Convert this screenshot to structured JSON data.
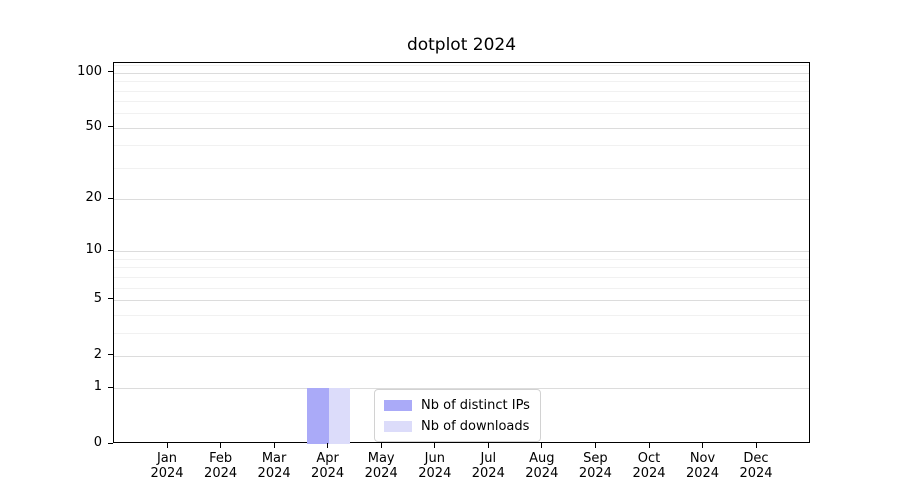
{
  "chart_data": {
    "type": "bar",
    "title": "dotplot 2024",
    "categories": [
      "Jan",
      "Feb",
      "Mar",
      "Apr",
      "May",
      "Jun",
      "Jul",
      "Aug",
      "Sep",
      "Oct",
      "Nov",
      "Dec"
    ],
    "category_year": "2024",
    "series": [
      {
        "name": "Nb of distinct IPs",
        "color": "#aaaaf8",
        "values": [
          0,
          0,
          0,
          1,
          0,
          0,
          0,
          0,
          0,
          0,
          0,
          0
        ]
      },
      {
        "name": "Nb of downloads",
        "color": "#dcdcfa",
        "values": [
          0,
          0,
          0,
          1,
          0,
          0,
          0,
          0,
          0,
          0,
          0,
          0
        ]
      }
    ],
    "y_scale": "log1p",
    "ylim": [
      0,
      113
    ],
    "y_ticks": [
      0,
      1,
      2,
      5,
      10,
      20,
      50,
      100
    ],
    "y_minor_gridlines": [
      3,
      4,
      6,
      7,
      8,
      9,
      30,
      40,
      60,
      70,
      80,
      90,
      110
    ],
    "grid": "horizontal",
    "legend": {
      "position": "lower center",
      "entries": [
        "Nb of distinct IPs",
        "Nb of downloads"
      ]
    },
    "colors": {
      "background": "#ffffff",
      "spine": "#000000",
      "grid_major": "#dcdcdc",
      "grid_minor": "#f1f1f1"
    }
  }
}
